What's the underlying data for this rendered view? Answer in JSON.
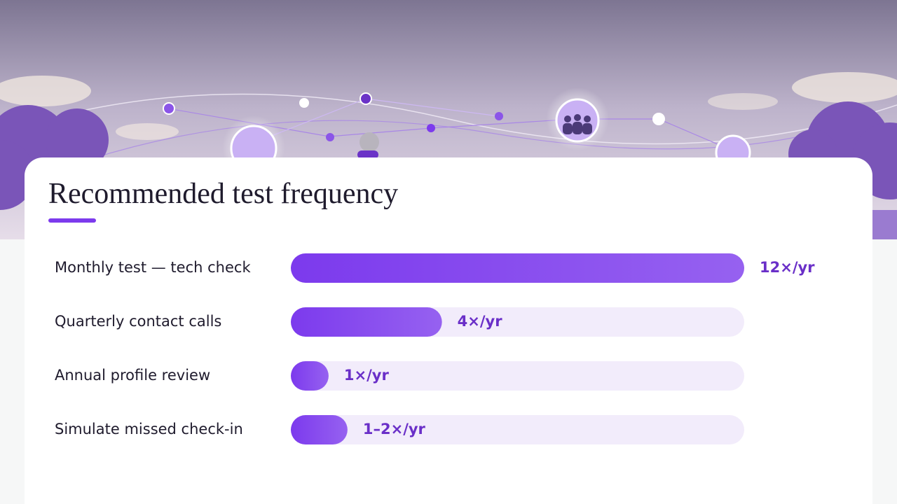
{
  "chart_data": {
    "type": "bar",
    "orientation": "horizontal",
    "title": "Recommended test frequency",
    "categories": [
      "Monthly test — tech check",
      "Quarterly contact calls",
      "Annual profile review",
      "Simulate missed check-in"
    ],
    "values": [
      12,
      4,
      1,
      1.5
    ],
    "value_labels": [
      "12×/yr",
      "4×/yr",
      "1×/yr",
      "1–2×/yr"
    ],
    "color": "#7c3aed",
    "xlim": [
      0,
      12
    ]
  }
}
